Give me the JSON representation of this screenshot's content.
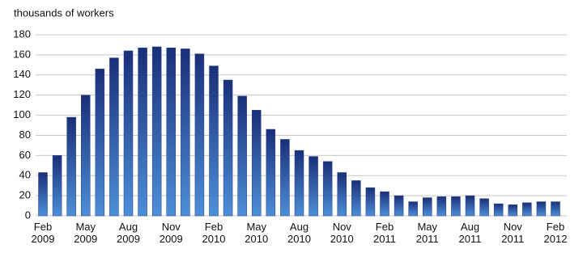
{
  "chart_data": {
    "type": "bar",
    "title": "thousands of workers",
    "categories": [
      "Feb 2009",
      null,
      null,
      "May 2009",
      null,
      null,
      "Aug 2009",
      null,
      null,
      "Nov 2009",
      null,
      null,
      "Feb 2010",
      null,
      null,
      "May 2010",
      null,
      null,
      "Aug 2010",
      null,
      null,
      "Nov 2010",
      null,
      null,
      "Feb 2011",
      null,
      null,
      "May 2011",
      null,
      null,
      "Aug 2011",
      null,
      null,
      "Nov 2011",
      null,
      null,
      "Feb 2012"
    ],
    "values": [
      43,
      60,
      98,
      120,
      146,
      157,
      164,
      167,
      168,
      167,
      166,
      161,
      149,
      135,
      119,
      105,
      86,
      76,
      65,
      59,
      54,
      43,
      35,
      28,
      24,
      20,
      14,
      18,
      19,
      19,
      20,
      17,
      12,
      11,
      13,
      14,
      14
    ],
    "color": "#1f3f8f",
    "ylim": [
      0,
      180
    ],
    "yticks": [
      0,
      20,
      40,
      60,
      80,
      100,
      120,
      140,
      160,
      180
    ],
    "grid": true
  }
}
